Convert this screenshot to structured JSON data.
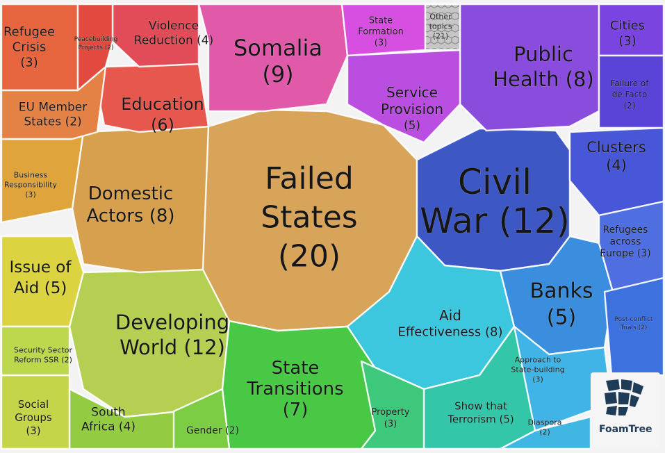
{
  "brand": "FoamTree",
  "groups": [
    {
      "id": "failed-states",
      "label": [
        "Failed",
        "States",
        "(20)"
      ],
      "color": "#d8a45a"
    },
    {
      "id": "civil-war",
      "label": [
        "Civil",
        "War (12)"
      ],
      "color": "#3d57c4"
    },
    {
      "id": "developing-world",
      "label": [
        "Developing",
        "World (12)"
      ],
      "color": "#b4cf52"
    },
    {
      "id": "somalia",
      "label": [
        "Somalia",
        "(9)"
      ],
      "color": "#e05aa9"
    },
    {
      "id": "public-health",
      "label": [
        "Public",
        "Health (8)"
      ],
      "color": "#8a4cdc"
    },
    {
      "id": "domestic-actors",
      "label": [
        "Domestic",
        "Actors (8)"
      ],
      "color": "#d7a04e"
    },
    {
      "id": "aid-effectiveness",
      "label": [
        "Aid",
        "Effectiveness (8)"
      ],
      "color": "#3cc7de"
    },
    {
      "id": "state-transitions",
      "label": [
        "State",
        "Transitions",
        "(7)"
      ],
      "color": "#48c844"
    },
    {
      "id": "education",
      "label": [
        "Education",
        "(6)"
      ],
      "color": "#e6584e"
    },
    {
      "id": "service-provision",
      "label": [
        "Service",
        "Provision",
        "(5)"
      ],
      "color": "#b94ee0"
    },
    {
      "id": "banks",
      "label": [
        "Banks",
        "(5)"
      ],
      "color": "#3b8dde"
    },
    {
      "id": "issue-of-aid",
      "label": [
        "Issue of",
        "Aid (5)"
      ],
      "color": "#dbd440"
    },
    {
      "id": "show-that-terrorism",
      "label": [
        "Show that",
        "Terrorism (5)"
      ],
      "color": "#34c6a8"
    },
    {
      "id": "violence-reduction",
      "label": [
        "Violence",
        "Reduction (4)"
      ],
      "color": "#e24c58"
    },
    {
      "id": "clusters",
      "label": [
        "Clusters",
        "(4)"
      ],
      "color": "#4857d8"
    },
    {
      "id": "south-africa",
      "label": [
        "South",
        "Africa (4)"
      ],
      "color": "#93cc42"
    },
    {
      "id": "refugee-crisis",
      "label": [
        "Refugee",
        "Crisis",
        "(3)"
      ],
      "color": "#e6653e"
    },
    {
      "id": "state-formation",
      "label": [
        "State",
        "Formation",
        "(3)"
      ],
      "color": "#d64fe0"
    },
    {
      "id": "cities",
      "label": [
        "Cities",
        "(3)"
      ],
      "color": "#7a44e0"
    },
    {
      "id": "refugees-across-europe",
      "label": [
        "Refugees",
        "across",
        "Europe (3)"
      ],
      "color": "#4f6ee0"
    },
    {
      "id": "social-groups",
      "label": [
        "Social",
        "Groups",
        "(3)"
      ],
      "color": "#c5d54a"
    },
    {
      "id": "property",
      "label": [
        "Property",
        "(3)"
      ],
      "color": "#3ec87c"
    },
    {
      "id": "approach-to-state-building",
      "label": [
        "Approach to",
        "State-building",
        "(3)"
      ],
      "color": "#40b4e6"
    },
    {
      "id": "business-responsibility",
      "label": [
        "Business",
        "Responsibility",
        "(3)"
      ],
      "color": "#e0a43c"
    },
    {
      "id": "eu-member-states",
      "label": [
        "EU Member",
        "States (2)"
      ],
      "color": "#e48246"
    },
    {
      "id": "peacebuilding-projects",
      "label": [
        "Peacebuilding",
        "Projects (2)"
      ],
      "color": "#e24a40"
    },
    {
      "id": "failure-of-de-facto",
      "label": [
        "Failure of",
        "de Facto",
        "(2)"
      ],
      "color": "#5a44d8"
    },
    {
      "id": "security-sector-reform",
      "label": [
        "Security Sector",
        "Reform SSR (2)"
      ],
      "color": "#bdd84c"
    },
    {
      "id": "gender",
      "label": [
        "Gender (2)"
      ],
      "color": "#7ccd44"
    },
    {
      "id": "diaspora",
      "label": [
        "Diaspora",
        "(2)"
      ],
      "color": "#40b6e2"
    },
    {
      "id": "post-conflict-trials",
      "label": [
        "Post-conflict",
        "Trials (2)"
      ],
      "color": "#3d72de"
    },
    {
      "id": "other-topics",
      "label": [
        "Other",
        "topics",
        "(21)"
      ],
      "color": "#9a9a9a"
    }
  ]
}
